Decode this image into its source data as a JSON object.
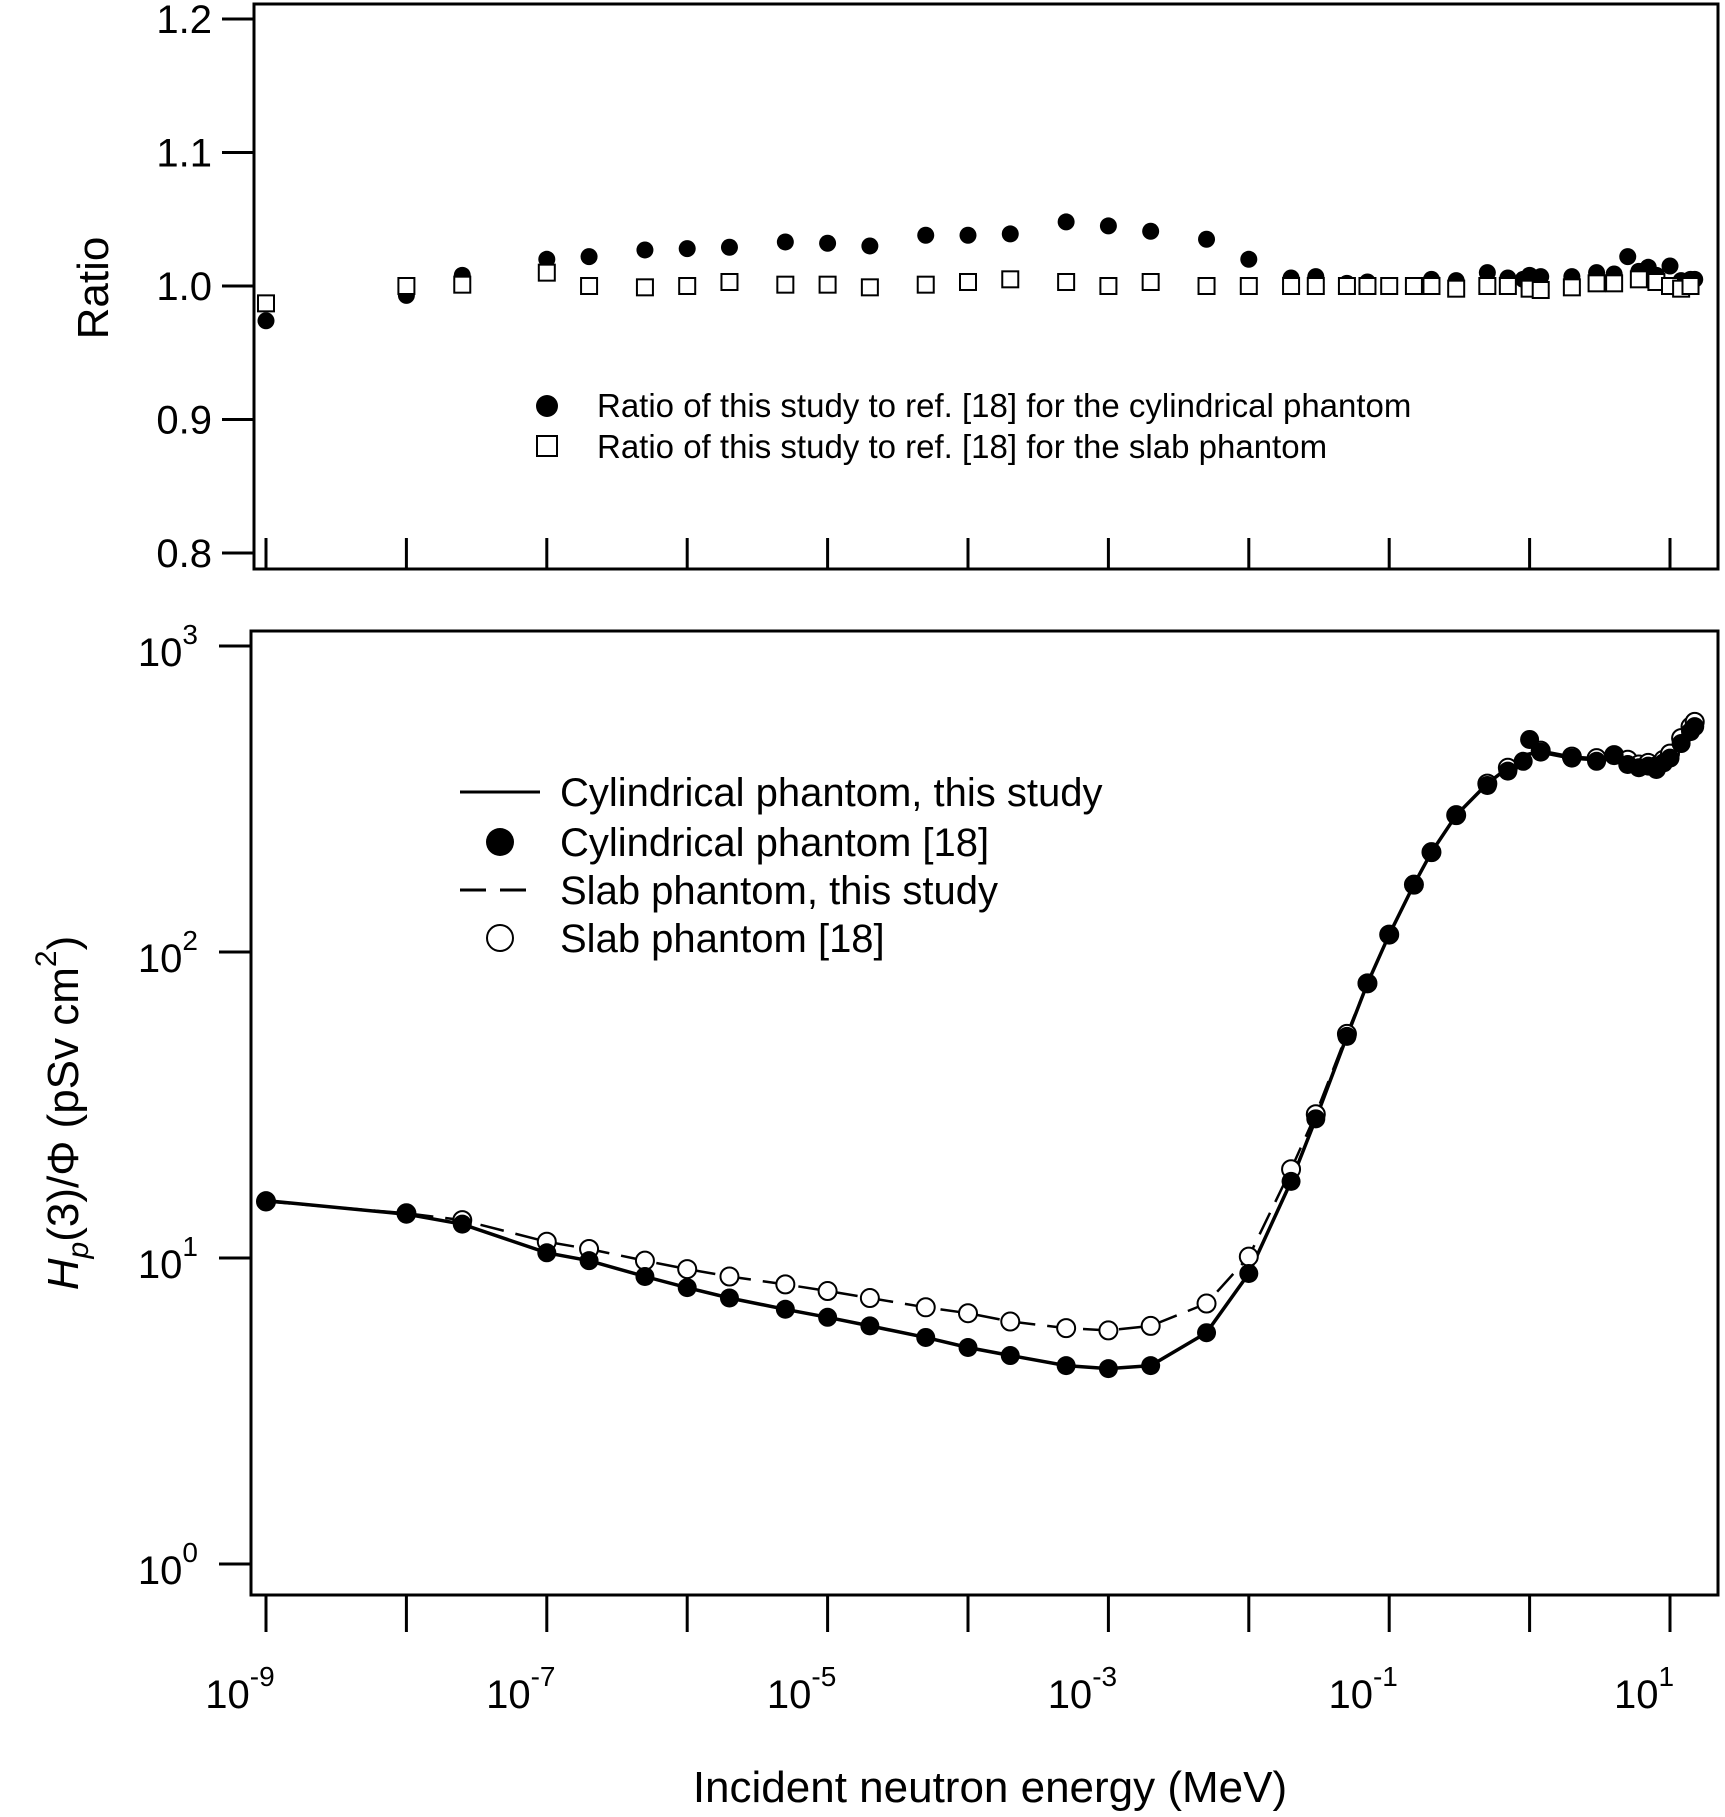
{
  "chart_data": [
    {
      "type": "scatter",
      "panel": "top",
      "ylabel": "Ratio",
      "x_scale": "log",
      "ylim": [
        0.8,
        1.2
      ],
      "yticks": [
        "0.8",
        "0.9",
        "1.0",
        "1.1",
        "1.2"
      ],
      "legend_position": "center",
      "series": [
        {
          "name": "Ratio of this study to ref. [18] for the cylindrical phantom",
          "marker": "filled-circle",
          "points": [
            [
              1e-09,
              0.974
            ],
            [
              1e-08,
              0.993
            ],
            [
              2.5e-08,
              1.008
            ],
            [
              1e-07,
              1.02
            ],
            [
              2e-07,
              1.022
            ],
            [
              5e-07,
              1.027
            ],
            [
              1e-06,
              1.028
            ],
            [
              2e-06,
              1.029
            ],
            [
              5e-06,
              1.033
            ],
            [
              1e-05,
              1.032
            ],
            [
              2e-05,
              1.03
            ],
            [
              5e-05,
              1.038
            ],
            [
              0.0001,
              1.038
            ],
            [
              0.0002,
              1.039
            ],
            [
              0.0005,
              1.048
            ],
            [
              0.001,
              1.045
            ],
            [
              0.002,
              1.041
            ],
            [
              0.005,
              1.035
            ],
            [
              0.01,
              1.02
            ],
            [
              0.02,
              1.006
            ],
            [
              0.03,
              1.007
            ],
            [
              0.05,
              1.002
            ],
            [
              0.07,
              1.003
            ],
            [
              0.1,
              1.0
            ],
            [
              0.15,
              1.0
            ],
            [
              0.2,
              1.005
            ],
            [
              0.3,
              1.004
            ],
            [
              0.5,
              1.01
            ],
            [
              0.7,
              1.006
            ],
            [
              0.9,
              1.005
            ],
            [
              1.0,
              1.008
            ],
            [
              1.2,
              1.007
            ],
            [
              2.0,
              1.007
            ],
            [
              3.0,
              1.01
            ],
            [
              4.0,
              1.009
            ],
            [
              5.0,
              1.022
            ],
            [
              6.0,
              1.011
            ],
            [
              7.0,
              1.014
            ],
            [
              8.0,
              1.008
            ],
            [
              10.0,
              1.015
            ],
            [
              12.0,
              1.004
            ],
            [
              14.0,
              1.005
            ],
            [
              15.0,
              1.005
            ]
          ]
        },
        {
          "name": "Ratio of this study to ref. [18] for the slab phantom",
          "marker": "open-square",
          "points": [
            [
              1e-09,
              0.987
            ],
            [
              1e-08,
              1.0
            ],
            [
              2.5e-08,
              1.001
            ],
            [
              1e-07,
              1.01
            ],
            [
              2e-07,
              1.0
            ],
            [
              5e-07,
              0.999
            ],
            [
              1e-06,
              1.0
            ],
            [
              2e-06,
              1.003
            ],
            [
              5e-06,
              1.001
            ],
            [
              1e-05,
              1.001
            ],
            [
              2e-05,
              0.999
            ],
            [
              5e-05,
              1.001
            ],
            [
              0.0001,
              1.003
            ],
            [
              0.0002,
              1.005
            ],
            [
              0.0005,
              1.003
            ],
            [
              0.001,
              1.0
            ],
            [
              0.002,
              1.003
            ],
            [
              0.005,
              1.0
            ],
            [
              0.01,
              1.0
            ],
            [
              0.02,
              1.0
            ],
            [
              0.03,
              1.0
            ],
            [
              0.05,
              1.0
            ],
            [
              0.07,
              1.0
            ],
            [
              0.1,
              1.0
            ],
            [
              0.15,
              1.0
            ],
            [
              0.2,
              1.0
            ],
            [
              0.3,
              0.998
            ],
            [
              0.5,
              1.0
            ],
            [
              0.7,
              1.0
            ],
            [
              1.0,
              0.998
            ],
            [
              1.2,
              0.997
            ],
            [
              2.0,
              0.999
            ],
            [
              3.0,
              1.002
            ],
            [
              4.0,
              1.002
            ],
            [
              6.0,
              1.005
            ],
            [
              8.0,
              1.003
            ],
            [
              10.0,
              1.0
            ],
            [
              12.0,
              0.998
            ],
            [
              14.0,
              1.0
            ]
          ]
        }
      ]
    },
    {
      "type": "line",
      "panel": "bottom",
      "xlabel": "Incident neutron energy (MeV)",
      "ylabel_parts": [
        "H",
        "p",
        "(3)/Φ (pSv cm",
        "2",
        ")"
      ],
      "x_scale": "log",
      "y_scale": "log",
      "xlim": [
        1e-09,
        15
      ],
      "ylim": [
        1,
        1000
      ],
      "xticks": [
        {
          "base": "10",
          "exp": "-9"
        },
        {
          "base": "10",
          "exp": "-7"
        },
        {
          "base": "10",
          "exp": "-5"
        },
        {
          "base": "10",
          "exp": "-3"
        },
        {
          "base": "10",
          "exp": "-1"
        },
        {
          "base": "10",
          "exp": "1"
        }
      ],
      "yticks": [
        {
          "base": "10",
          "exp": "0"
        },
        {
          "base": "10",
          "exp": "1"
        },
        {
          "base": "10",
          "exp": "2"
        },
        {
          "base": "10",
          "exp": "3"
        }
      ],
      "legend_position": "upper-left",
      "series": [
        {
          "name": "Cylindrical phantom, this study",
          "style": "solid-line",
          "points": [
            [
              1e-09,
              15.4
            ],
            [
              1e-08,
              13.9
            ],
            [
              2.5e-08,
              12.9
            ],
            [
              1e-07,
              10.4
            ],
            [
              2e-07,
              9.8
            ],
            [
              5e-07,
              8.7
            ],
            [
              1e-06,
              8.0
            ],
            [
              2e-06,
              7.4
            ],
            [
              5e-06,
              6.8
            ],
            [
              1e-05,
              6.4
            ],
            [
              2e-05,
              6.0
            ],
            [
              5e-05,
              5.5
            ],
            [
              0.0001,
              5.1
            ],
            [
              0.0002,
              4.8
            ],
            [
              0.0005,
              4.45
            ],
            [
              0.001,
              4.35
            ],
            [
              0.002,
              4.45
            ],
            [
              0.005,
              5.7
            ],
            [
              0.01,
              8.9
            ],
            [
              0.02,
              17.8
            ],
            [
              0.03,
              28.5
            ],
            [
              0.05,
              53
            ],
            [
              0.07,
              79
            ],
            [
              0.1,
              114
            ],
            [
              0.15,
              166
            ],
            [
              0.2,
              212
            ],
            [
              0.3,
              280
            ],
            [
              0.5,
              355
            ],
            [
              0.7,
              400
            ],
            [
              0.9,
              440
            ],
            [
              1.2,
              450
            ],
            [
              2.0,
              430
            ],
            [
              3.0,
              425
            ],
            [
              4.0,
              435
            ],
            [
              5.0,
              420
            ],
            [
              6.0,
              405
            ],
            [
              7.0,
              410
            ],
            [
              8.0,
              400
            ],
            [
              9.0,
              420
            ],
            [
              10.0,
              440
            ],
            [
              12.0,
              490
            ],
            [
              14.0,
              535
            ],
            [
              15.0,
              550
            ]
          ]
        },
        {
          "name": "Cylindrical phantom [18]",
          "marker": "filled-circle",
          "points": [
            [
              1e-09,
              15.4
            ],
            [
              1e-08,
              13.9
            ],
            [
              2.5e-08,
              12.9
            ],
            [
              1e-07,
              10.4
            ],
            [
              2e-07,
              9.8
            ],
            [
              5e-07,
              8.7
            ],
            [
              1e-06,
              8.0
            ],
            [
              2e-06,
              7.4
            ],
            [
              5e-06,
              6.8
            ],
            [
              1e-05,
              6.4
            ],
            [
              2e-05,
              6.0
            ],
            [
              5e-05,
              5.5
            ],
            [
              0.0001,
              5.1
            ],
            [
              0.0002,
              4.8
            ],
            [
              0.0005,
              4.45
            ],
            [
              0.001,
              4.35
            ],
            [
              0.002,
              4.45
            ],
            [
              0.005,
              5.7
            ],
            [
              0.01,
              8.9
            ],
            [
              0.02,
              17.8
            ],
            [
              0.03,
              28.5
            ],
            [
              0.05,
              53
            ],
            [
              0.07,
              79
            ],
            [
              0.1,
              114
            ],
            [
              0.15,
              166
            ],
            [
              0.2,
              212
            ],
            [
              0.3,
              280
            ],
            [
              0.5,
              350
            ],
            [
              0.7,
              390
            ],
            [
              0.9,
              420
            ],
            [
              1.0,
              495
            ],
            [
              1.2,
              450
            ],
            [
              2.0,
              430
            ],
            [
              3.0,
              420
            ],
            [
              4.0,
              440
            ],
            [
              5.0,
              410
            ],
            [
              6.0,
              400
            ],
            [
              7.0,
              405
            ],
            [
              8.0,
              395
            ],
            [
              9.0,
              415
            ],
            [
              10.0,
              430
            ],
            [
              12.0,
              480
            ],
            [
              14.0,
              525
            ],
            [
              15.0,
              545
            ]
          ]
        },
        {
          "name": "Slab phantom, this study",
          "style": "dashed-line",
          "points": [
            [
              1e-09,
              15.3
            ],
            [
              1e-08,
              14.0
            ],
            [
              2.5e-08,
              13.3
            ],
            [
              1e-07,
              11.3
            ],
            [
              2e-07,
              10.7
            ],
            [
              5e-07,
              9.8
            ],
            [
              1e-06,
              9.2
            ],
            [
              2e-06,
              8.7
            ],
            [
              5e-06,
              8.2
            ],
            [
              1e-05,
              7.8
            ],
            [
              2e-05,
              7.4
            ],
            [
              5e-05,
              6.9
            ],
            [
              0.0001,
              6.6
            ],
            [
              0.0002,
              6.2
            ],
            [
              0.0005,
              5.9
            ],
            [
              0.001,
              5.8
            ],
            [
              0.002,
              6.0
            ],
            [
              0.005,
              7.1
            ],
            [
              0.01,
              10.1
            ],
            [
              0.02,
              19.5
            ],
            [
              0.03,
              29.5
            ],
            [
              0.05,
              54
            ],
            [
              0.07,
              79
            ],
            [
              0.1,
              114
            ],
            [
              0.15,
              166
            ],
            [
              0.2,
              212
            ],
            [
              0.3,
              280
            ],
            [
              0.5,
              355
            ],
            [
              0.7,
              400
            ],
            [
              0.9,
              440
            ],
            [
              1.2,
              455
            ],
            [
              2.0,
              435
            ],
            [
              3.0,
              430
            ],
            [
              4.0,
              440
            ],
            [
              5.0,
              425
            ],
            [
              6.0,
              410
            ],
            [
              7.0,
              415
            ],
            [
              8.0,
              405
            ],
            [
              9.0,
              425
            ],
            [
              10.0,
              445
            ],
            [
              12.0,
              500
            ],
            [
              14.0,
              545
            ],
            [
              15.0,
              565
            ]
          ]
        },
        {
          "name": "Slab phantom [18]",
          "marker": "open-circle",
          "points": [
            [
              1e-09,
              15.3
            ],
            [
              1e-08,
              14.0
            ],
            [
              2.5e-08,
              13.3
            ],
            [
              1e-07,
              11.3
            ],
            [
              2e-07,
              10.7
            ],
            [
              5e-07,
              9.8
            ],
            [
              1e-06,
              9.2
            ],
            [
              2e-06,
              8.7
            ],
            [
              5e-06,
              8.2
            ],
            [
              1e-05,
              7.8
            ],
            [
              2e-05,
              7.4
            ],
            [
              5e-05,
              6.9
            ],
            [
              0.0001,
              6.6
            ],
            [
              0.0002,
              6.2
            ],
            [
              0.0005,
              5.9
            ],
            [
              0.001,
              5.8
            ],
            [
              0.002,
              6.0
            ],
            [
              0.005,
              7.1
            ],
            [
              0.01,
              10.1
            ],
            [
              0.02,
              19.5
            ],
            [
              0.03,
              29.5
            ],
            [
              0.05,
              54
            ],
            [
              0.07,
              79
            ],
            [
              0.1,
              114
            ],
            [
              0.15,
              166
            ],
            [
              0.2,
              212
            ],
            [
              0.3,
              280
            ],
            [
              0.5,
              355
            ],
            [
              0.7,
              400
            ],
            [
              1.2,
              455
            ],
            [
              2.0,
              435
            ],
            [
              3.0,
              430
            ],
            [
              4.0,
              440
            ],
            [
              5.0,
              425
            ],
            [
              6.0,
              410
            ],
            [
              7.0,
              415
            ],
            [
              8.0,
              405
            ],
            [
              9.0,
              425
            ],
            [
              10.0,
              445
            ],
            [
              12.0,
              500
            ],
            [
              14.0,
              545
            ],
            [
              15.0,
              565
            ]
          ]
        }
      ]
    }
  ]
}
